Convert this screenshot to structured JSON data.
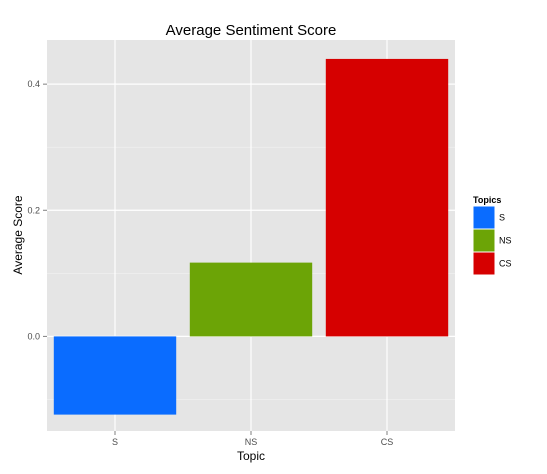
{
  "chart_data": {
    "type": "bar",
    "title": "Average Sentiment Score",
    "xlabel": "Topic",
    "ylabel": "Average Score",
    "categories": [
      "S",
      "NS",
      "CS"
    ],
    "values": [
      -0.124,
      0.117,
      0.44
    ],
    "colors": [
      "#0a6cff",
      "#6ca406",
      "#d60000"
    ],
    "ylim": [
      -0.15,
      0.47
    ],
    "yticks": [
      0.0,
      0.2,
      0.4
    ],
    "ytick_labels": [
      "0.0",
      "0.2",
      "0.4"
    ],
    "grid": true,
    "legend": {
      "title": "Topics",
      "placement": "right",
      "entries": [
        "S",
        "NS",
        "CS"
      ]
    }
  }
}
